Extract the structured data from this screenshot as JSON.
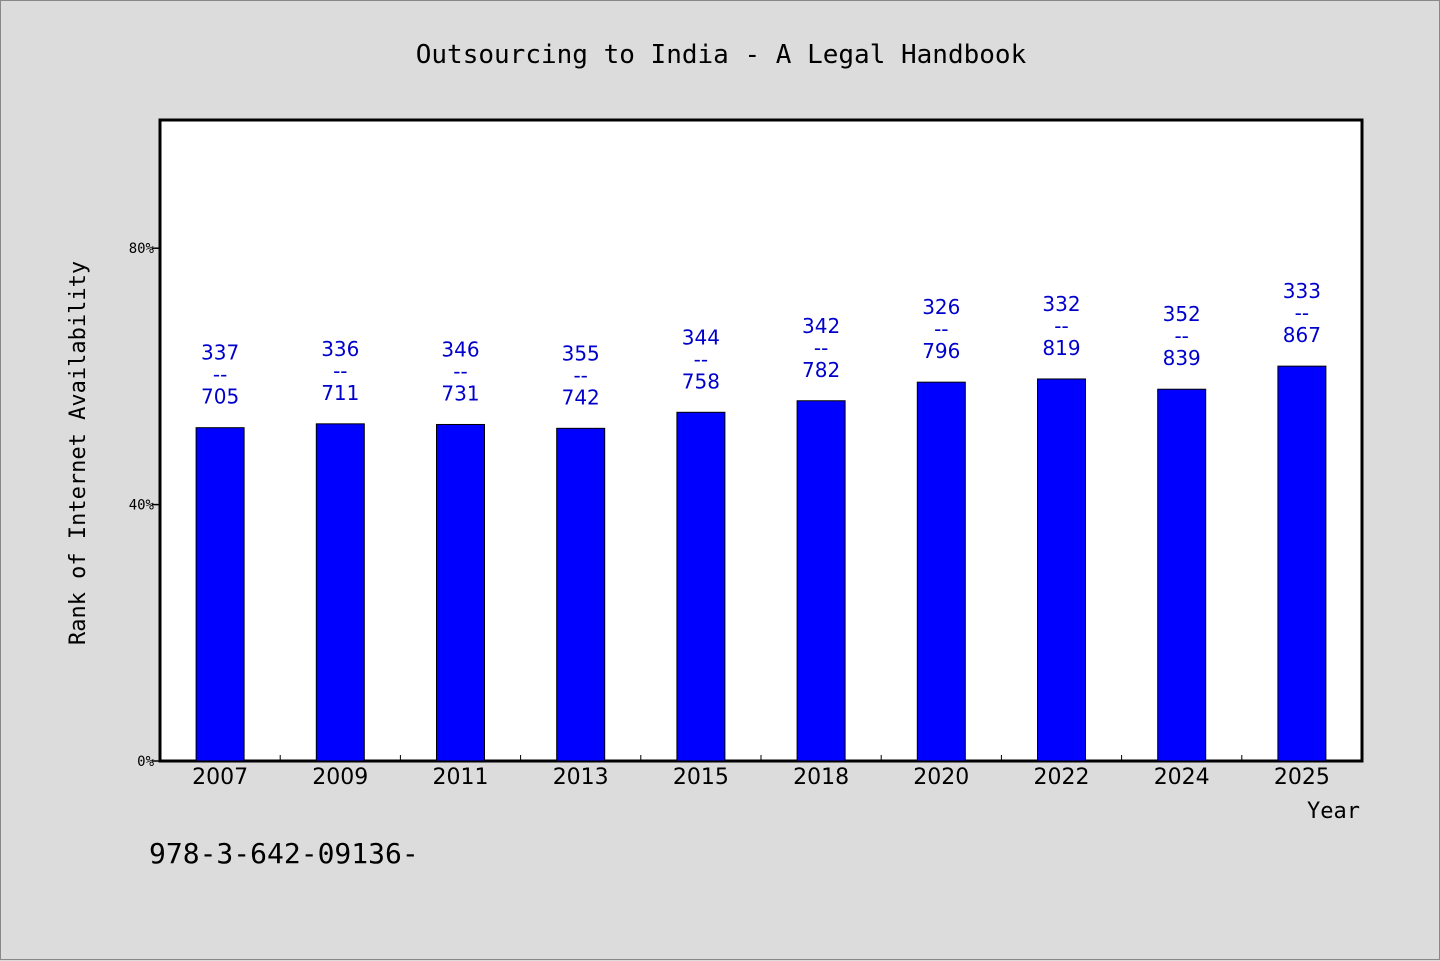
{
  "chart_data": {
    "type": "bar",
    "title": "Outsourcing to India - A Legal Handbook",
    "xlabel": "Year",
    "ylabel": "Rank of Internet Availability",
    "categories": [
      "2007",
      "2009",
      "2011",
      "2013",
      "2015",
      "2018",
      "2020",
      "2022",
      "2024",
      "2025"
    ],
    "values": [
      0.52,
      0.526,
      0.525,
      0.519,
      0.544,
      0.562,
      0.591,
      0.596,
      0.58,
      0.616
    ],
    "bar_labels": [
      {
        "top": "337",
        "mid": "--",
        "bottom": "705"
      },
      {
        "top": "336",
        "mid": "--",
        "bottom": "711"
      },
      {
        "top": "346",
        "mid": "--",
        "bottom": "731"
      },
      {
        "top": "355",
        "mid": "--",
        "bottom": "742"
      },
      {
        "top": "344",
        "mid": "--",
        "bottom": "758"
      },
      {
        "top": "342",
        "mid": "--",
        "bottom": "782"
      },
      {
        "top": "326",
        "mid": "--",
        "bottom": "796"
      },
      {
        "top": "332",
        "mid": "--",
        "bottom": "819"
      },
      {
        "top": "352",
        "mid": "--",
        "bottom": "839"
      },
      {
        "top": "333",
        "mid": "--",
        "bottom": "867"
      }
    ],
    "ylim": [
      0,
      1.0
    ],
    "yticks": [
      0,
      0.4,
      0.8
    ],
    "ytick_labels": [
      "0%",
      "40%",
      "80%"
    ],
    "grid": false,
    "bar_color": "#0000ff",
    "label_color": "#0000cc",
    "background": "#dcdcdc",
    "plot_background": "#ffffff"
  },
  "footer": {
    "isbn": "978-3-642-09136-"
  }
}
